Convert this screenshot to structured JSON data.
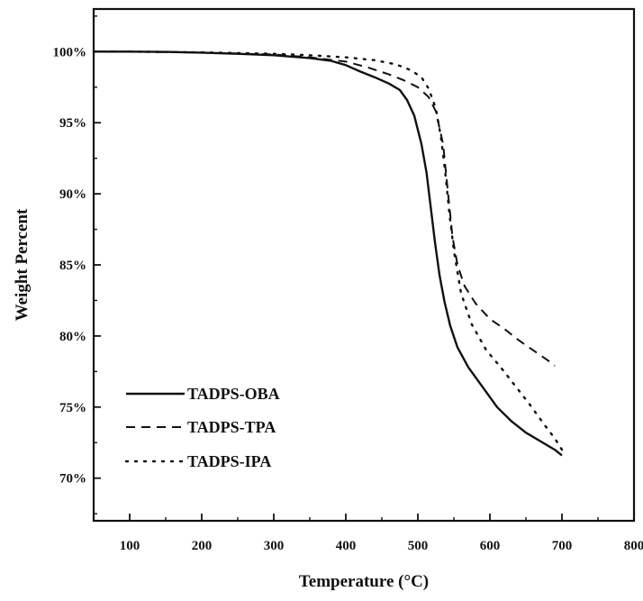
{
  "chart_data": {
    "type": "line",
    "title": "",
    "xlabel": "Temperature (°C)",
    "ylabel": "Weight Percent",
    "xlim": [
      50,
      800
    ],
    "ylim": [
      67,
      103
    ],
    "x_ticks": [
      100,
      200,
      300,
      400,
      500,
      600,
      700,
      800
    ],
    "x_tick_labels": [
      "100",
      "200",
      "300",
      "400",
      "500",
      "600",
      "700",
      "800"
    ],
    "y_ticks": [
      70,
      75,
      80,
      85,
      90,
      95,
      100
    ],
    "y_tick_labels": [
      "70%",
      "75%",
      "80%",
      "85%",
      "90%",
      "95%",
      "100%"
    ],
    "grid": false,
    "legend_position": "bottom-left",
    "series": [
      {
        "name": "TADPS-OBA",
        "style": "solid",
        "x": [
          50,
          100,
          150,
          200,
          250,
          300,
          350,
          380,
          400,
          420,
          440,
          460,
          475,
          485,
          495,
          505,
          512,
          518,
          524,
          530,
          537,
          545,
          555,
          570,
          590,
          610,
          630,
          650,
          670,
          690,
          700
        ],
        "y": [
          100.0,
          100.0,
          99.98,
          99.93,
          99.85,
          99.75,
          99.55,
          99.35,
          99.05,
          98.6,
          98.2,
          97.75,
          97.3,
          96.6,
          95.5,
          93.5,
          91.5,
          89.0,
          86.5,
          84.3,
          82.4,
          80.7,
          79.2,
          77.8,
          76.4,
          75.0,
          74.0,
          73.2,
          72.6,
          72.0,
          71.6
        ]
      },
      {
        "name": "TADPS-TPA",
        "style": "dashed",
        "x": [
          50,
          100,
          200,
          300,
          350,
          400,
          430,
          460,
          480,
          500,
          515,
          525,
          535,
          542,
          548,
          555,
          565,
          580,
          600,
          620,
          640,
          660,
          680,
          690
        ],
        "y": [
          100.0,
          100.0,
          99.93,
          99.8,
          99.6,
          99.3,
          98.9,
          98.4,
          98.0,
          97.5,
          96.8,
          95.8,
          93.5,
          90.0,
          87.0,
          85.0,
          83.5,
          82.3,
          81.2,
          80.5,
          79.7,
          79.0,
          78.3,
          77.9
        ]
      },
      {
        "name": "TADPS-IPA",
        "style": "dotted",
        "x": [
          50,
          100,
          200,
          300,
          350,
          400,
          440,
          470,
          490,
          505,
          515,
          525,
          532,
          538,
          544,
          550,
          560,
          575,
          595,
          615,
          635,
          655,
          675,
          690,
          700
        ],
        "y": [
          100.0,
          100.0,
          99.95,
          99.85,
          99.75,
          99.6,
          99.4,
          99.1,
          98.7,
          98.2,
          97.4,
          96.0,
          94.0,
          91.5,
          88.5,
          86.0,
          83.0,
          80.8,
          79.0,
          77.8,
          76.5,
          75.2,
          73.8,
          72.8,
          72.0
        ]
      }
    ]
  }
}
